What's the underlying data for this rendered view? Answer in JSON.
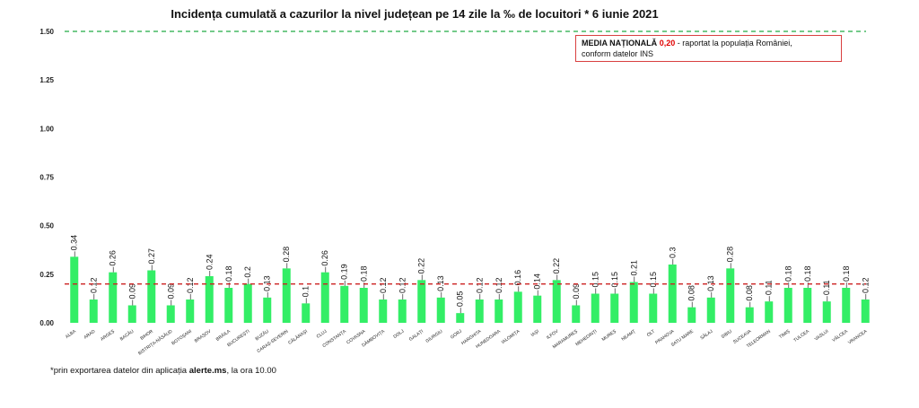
{
  "title": "Incidența cumulată a cazurilor la nivel județean pe 14 zile la ‰ de locuitori *  6 iunie 2021",
  "legend": {
    "label": "MEDIA NAȚIONALĂ",
    "value": "0,20",
    "text": " - raportat la populația României,",
    "text2": "conform datelor INS"
  },
  "footnote": {
    "prefix": "*prin exportarea datelor din aplicația ",
    "app": "alerte.ms",
    "suffix": ", la ora 10.00"
  },
  "colors": {
    "bar": "#33ee66",
    "stem": "#444444",
    "mean_line": "#cc2222",
    "top_line": "#22aa44"
  },
  "chart_data": {
    "type": "bar",
    "categories": [
      "ALBA",
      "ARAD",
      "ARGEȘ",
      "BACĂU",
      "BIHOR",
      "BISTRIȚA-NĂSĂUD",
      "BOTOȘANI",
      "BRAȘOV",
      "BRĂILA",
      "BUCUREȘTI",
      "BUZĂU",
      "CARAȘ-SEVERIN",
      "CĂLĂRAȘI",
      "CLUJ",
      "CONSTANȚA",
      "COVASNA",
      "DÂMBOVIȚA",
      "DOLJ",
      "GALAȚI",
      "GIURGIU",
      "GORJ",
      "HARGHITA",
      "HUNEDOARA",
      "IALOMIȚA",
      "IAȘI",
      "ILFOV",
      "MARAMUREȘ",
      "MEHEDINȚI",
      "MUREȘ",
      "NEAMȚ",
      "OLT",
      "PRAHOVA",
      "SATU MARE",
      "SĂLAJ",
      "SIBIU",
      "SUCEAVA",
      "TELEORMAN",
      "TIMIȘ",
      "TULCEA",
      "VASLUI",
      "VÂLCEA",
      "VRANCEA"
    ],
    "values": [
      0.34,
      0.12,
      0.26,
      0.09,
      0.27,
      0.09,
      0.12,
      0.24,
      0.18,
      0.2,
      0.13,
      0.28,
      0.1,
      0.26,
      0.19,
      0.18,
      0.12,
      0.12,
      0.22,
      0.13,
      0.05,
      0.12,
      0.12,
      0.16,
      0.14,
      0.22,
      0.09,
      0.15,
      0.15,
      0.21,
      0.15,
      0.3,
      0.08,
      0.13,
      0.28,
      0.08,
      0.11,
      0.18,
      0.18,
      0.11,
      0.18,
      0.12
    ],
    "labels": [
      "0.34",
      "0.12",
      "0.26",
      "0.09",
      "0.27",
      "0.09",
      "0.12",
      "0.24",
      "0.18",
      "0.2",
      "0.13",
      "0.28",
      "0.1",
      "0.26",
      "0.19",
      "0.18",
      "0.12",
      "0.12",
      "0.22",
      "0.13",
      "0.05",
      "0.12",
      "0.12",
      "0.16",
      "0.14",
      "0.22",
      "0.09",
      "0.15",
      "0.15",
      "0.21",
      "0.15",
      "0.3",
      "0.08",
      "0.13",
      "0.28",
      "0.08",
      "0.11",
      "0.18",
      "0.18",
      "0.11",
      "0.18",
      "0.12"
    ],
    "y_ticks": [
      "0.00",
      "0.25",
      "0.50",
      "0.75",
      "1.00",
      "1.25",
      "1.50"
    ],
    "y_tick_values": [
      0,
      0.25,
      0.5,
      0.75,
      1.0,
      1.25,
      1.5
    ],
    "ylim": [
      0,
      1.5
    ],
    "national_mean": 0.2,
    "reference_line": 1.5,
    "title": "Incidența cumulată a cazurilor la nivel județean pe 14 zile la ‰ de locuitori *  6 iunie 2021",
    "xlabel": "",
    "ylabel": "",
    "grid": false,
    "legend_position": "top-right"
  }
}
